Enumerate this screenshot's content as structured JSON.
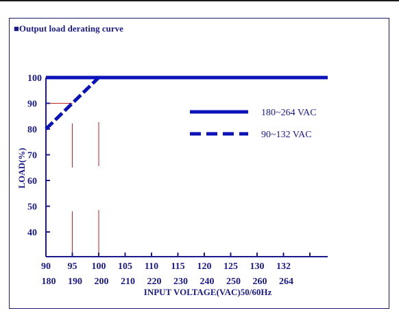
{
  "chart_data": {
    "type": "line",
    "title": "■Output load derating curve",
    "ylabel": "LOAD(%)",
    "xlabel": "INPUT VOLTAGE(VAC)50/60Hz",
    "y_ticks": [
      40,
      50,
      60,
      70,
      80,
      90,
      100
    ],
    "ylim": [
      30,
      100
    ],
    "x_ticks_row1": [
      "90",
      "95",
      "100",
      "105",
      "110",
      "115",
      "120",
      "125",
      "130",
      "132"
    ],
    "x_ticks_row2": [
      "180",
      "190",
      "200",
      "210",
      "220",
      "230",
      "240",
      "250",
      "260",
      "264"
    ],
    "series": [
      {
        "name": "180~264 VAC",
        "style": "solid",
        "color": "#0b12b8",
        "x": [
          90,
          100,
          132
        ],
        "y": [
          100,
          100,
          100
        ]
      },
      {
        "name": "90~132 VAC",
        "style": "dashed",
        "color": "#0b12b8",
        "x": [
          90,
          100
        ],
        "y": [
          80,
          100
        ]
      }
    ],
    "grid": false,
    "legend_position": "top-right",
    "colors": {
      "axis": "#1a1a8c",
      "series": "#0b12b8",
      "guide": "#c02020"
    }
  }
}
